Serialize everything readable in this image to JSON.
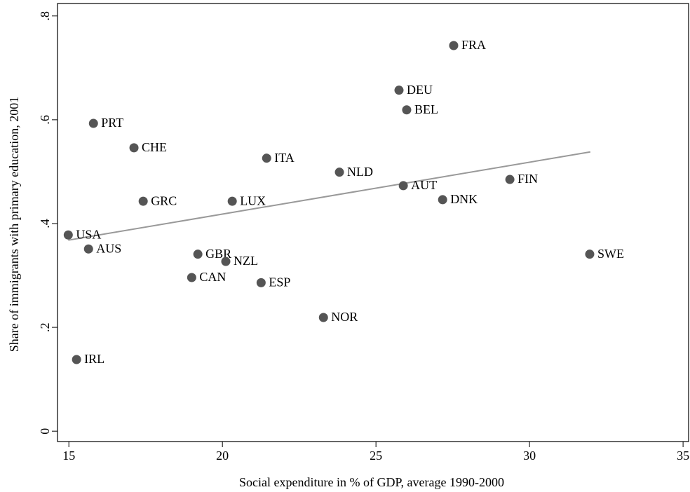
{
  "chart_data": {
    "type": "scatter",
    "xlabel": "Social expenditure in % of GDP, average 1990-2000",
    "ylabel": "Share of immigrants with primary education, 2001",
    "xlim": [
      14.63,
      35.18
    ],
    "ylim": [
      -0.02,
      0.824
    ],
    "xticks": [
      15,
      20,
      25,
      30,
      35
    ],
    "yticks": [
      {
        "value": 0,
        "label": "0"
      },
      {
        "value": 0.2,
        "label": ".2"
      },
      {
        "value": 0.4,
        "label": ".4"
      },
      {
        "value": 0.6,
        "label": ".6"
      },
      {
        "value": 0.8,
        "label": ".8"
      }
    ],
    "color": "#555555",
    "labels": [
      "USA",
      "AUS",
      "IRL",
      "PRT",
      "CHE",
      "GRC",
      "GBR",
      "CAN",
      "NZL",
      "LUX",
      "ITA",
      "ESP",
      "NOR",
      "NLD",
      "AUT",
      "DEU",
      "BEL",
      "DNK",
      "FRA",
      "FIN",
      "SWE"
    ],
    "x": [
      14.98,
      15.64,
      15.25,
      15.8,
      17.12,
      17.42,
      19.2,
      19.0,
      20.11,
      20.32,
      21.44,
      21.26,
      23.29,
      23.81,
      25.89,
      25.75,
      26.0,
      27.17,
      27.53,
      29.36,
      31.96
    ],
    "y": [
      0.378,
      0.351,
      0.138,
      0.593,
      0.546,
      0.443,
      0.341,
      0.296,
      0.327,
      0.443,
      0.526,
      0.286,
      0.219,
      0.499,
      0.473,
      0.657,
      0.619,
      0.446,
      0.743,
      0.485,
      0.341
    ],
    "fit": {
      "x": [
        14.98,
        31.98
      ],
      "y": [
        0.368,
        0.538
      ],
      "color": "#999999"
    }
  }
}
